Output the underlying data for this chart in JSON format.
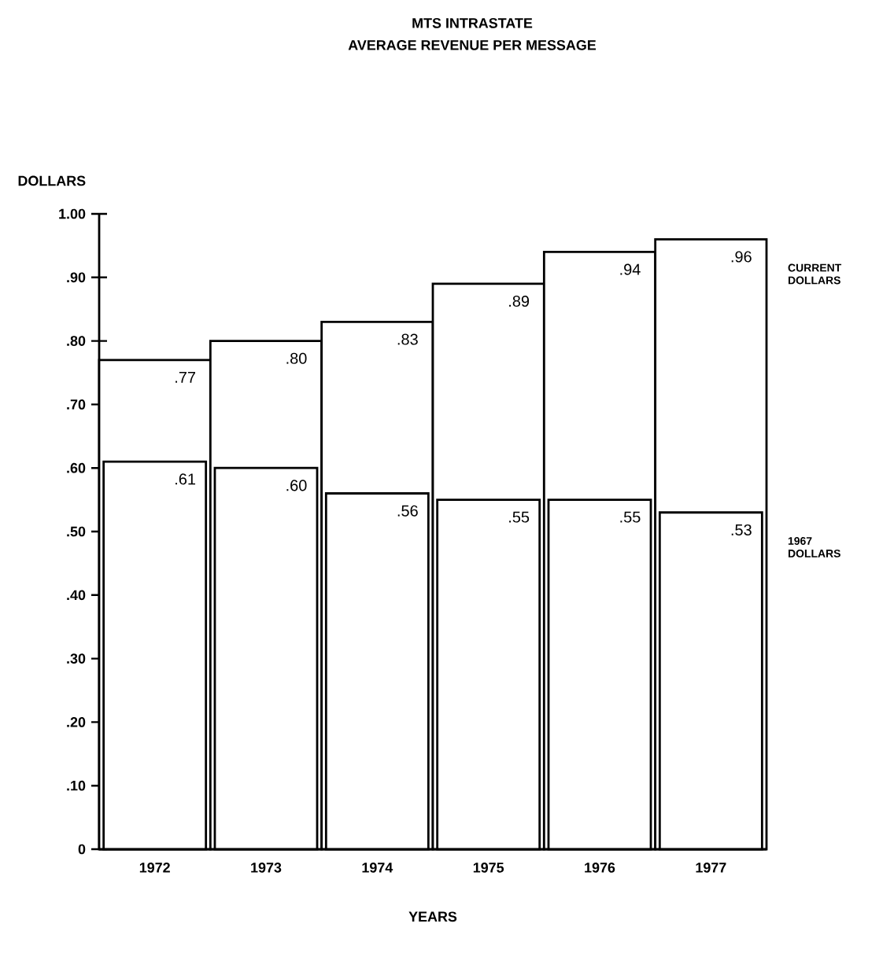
{
  "chart_data": {
    "type": "bar",
    "title": "MTS INTRASTATE",
    "subtitle": "AVERAGE REVENUE PER MESSAGE",
    "xlabel": "YEARS",
    "ylabel": "DOLLARS",
    "categories": [
      "1972",
      "1973",
      "1974",
      "1975",
      "1976",
      "1977"
    ],
    "series": [
      {
        "name": "CURRENT DOLLARS",
        "color": "#ffffff",
        "values": [
          0.77,
          0.8,
          0.83,
          0.89,
          0.94,
          0.96
        ],
        "value_labels": [
          ".77",
          ".80",
          ".83",
          ".89",
          ".94",
          ".96"
        ]
      },
      {
        "name": "1967 DOLLARS",
        "color": "#ffffff",
        "values": [
          0.61,
          0.6,
          0.56,
          0.55,
          0.55,
          0.53
        ],
        "value_labels": [
          ".61",
          ".60",
          ".56",
          ".55",
          ".55",
          ".53"
        ]
      }
    ],
    "ylim": [
      0,
      1.0
    ],
    "yticks": [
      0,
      {
        "value": 0.1,
        "label": ".10"
      },
      {
        "value": 0.2,
        "label": ".20"
      },
      {
        "value": 0.3,
        "label": ".30"
      },
      {
        "value": 0.4,
        "label": ".40"
      },
      {
        "value": 0.5,
        "label": ".50"
      },
      {
        "value": 0.6,
        "label": ".60"
      },
      {
        "value": 0.7,
        "label": ".70"
      },
      {
        "value": 0.8,
        "label": ".80"
      },
      {
        "value": 0.9,
        "label": ".90"
      },
      {
        "value": 1.0,
        "label": "1.00"
      }
    ],
    "grid": false,
    "legend": false
  }
}
